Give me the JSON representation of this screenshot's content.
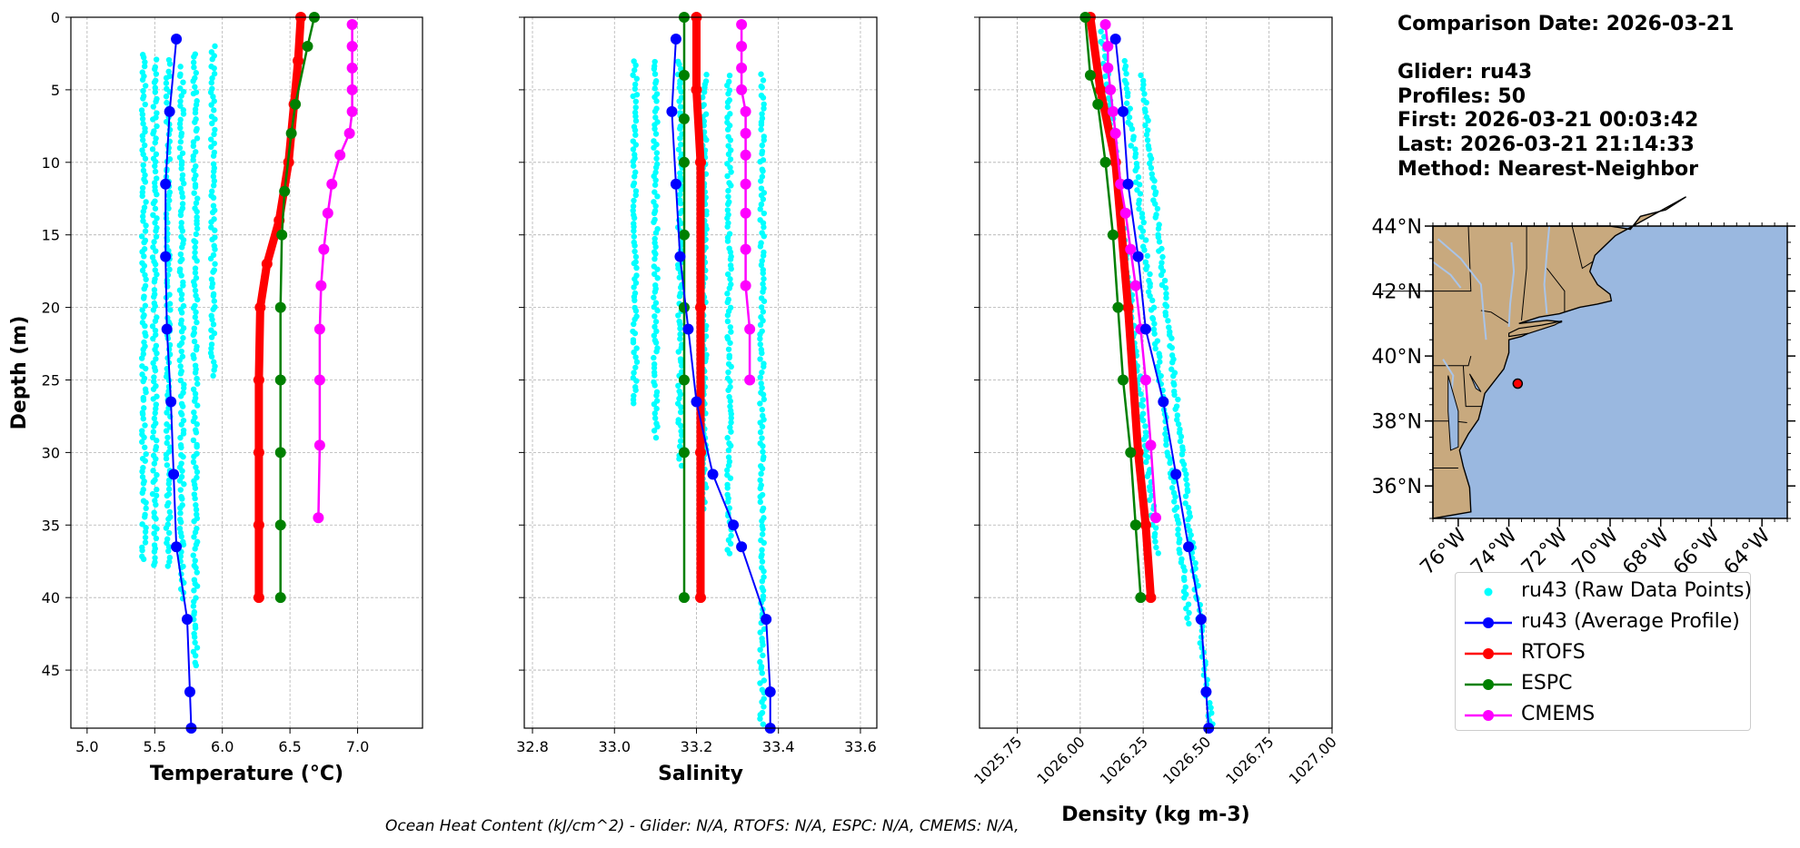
{
  "info": {
    "date_line": "Comparison Date: 2026-03-21",
    "glider_line": "Glider: ru43",
    "profiles_line": "Profiles: 50",
    "first_line": "First: 2026-03-21 00:03:42",
    "last_line": "Last: 2026-03-21 21:14:33",
    "method_line": "Method: Nearest-Neighbor"
  },
  "footnote": "Ocean Heat Content (kJ/cm^2) - Glider: N/A,  RTOFS: N/A,  ESPC: N/A,  CMEMS: N/A,",
  "colors": {
    "raw": "#00ffff",
    "glider": "#0000ff",
    "rtofs": "#ff0000",
    "espc": "#008000",
    "cmems": "#ff00ff",
    "land": "#c8a97e",
    "ocean": "#9ab8e0",
    "marker": "#ff0000"
  },
  "legend": [
    {
      "label": "ru43 (Raw Data Points)",
      "series": "raw"
    },
    {
      "label": "ru43 (Average Profile)",
      "series": "glider"
    },
    {
      "label": "RTOFS",
      "series": "rtofs"
    },
    {
      "label": "ESPC",
      "series": "espc"
    },
    {
      "label": "CMEMS",
      "series": "cmems"
    }
  ],
  "chart_data": [
    {
      "type": "line",
      "xlabel": "Temperature (°C)",
      "ylabel": "Depth (m)",
      "xlim": [
        4.88,
        7.48
      ],
      "ylim": [
        49,
        0
      ],
      "xticks": [
        "5.0",
        "5.5",
        "6.0",
        "6.5",
        "7.0"
      ],
      "yticks": [
        "0",
        "5",
        "10",
        "15",
        "20",
        "25",
        "30",
        "35",
        "40",
        "45"
      ],
      "grid": true,
      "raw_columns": [
        {
          "x": 5.42,
          "depth_range": [
            2.5,
            37.5
          ]
        },
        {
          "x": 5.5,
          "depth_range": [
            3,
            38
          ]
        },
        {
          "x": 5.6,
          "depth_range": [
            3,
            38
          ]
        },
        {
          "x": 5.7,
          "depth_range": [
            3.5,
            40
          ]
        },
        {
          "x": 5.8,
          "depth_range": [
            2.5,
            45
          ]
        },
        {
          "x": 5.93,
          "depth_range": [
            2,
            25
          ]
        }
      ],
      "series": [
        {
          "name": "ru43 (Average Profile)",
          "key": "glider",
          "x": [
            5.66,
            5.61,
            5.58,
            5.58,
            5.59,
            5.62,
            5.64,
            5.66,
            5.74,
            5.76,
            5.77
          ],
          "depth": [
            1.5,
            6.5,
            11.5,
            16.5,
            21.5,
            26.5,
            31.5,
            36.5,
            41.5,
            46.5,
            49
          ]
        },
        {
          "name": "RTOFS",
          "key": "rtofs",
          "x": [
            6.58,
            6.56,
            6.53,
            6.49,
            6.42,
            6.33,
            6.28,
            6.27,
            6.27,
            6.27,
            6.27
          ],
          "depth": [
            0,
            3,
            6,
            10,
            14,
            17,
            20,
            25,
            30,
            35,
            40
          ]
        },
        {
          "name": "ESPC",
          "key": "espc",
          "x": [
            6.68,
            6.63,
            6.54,
            6.51,
            6.46,
            6.44,
            6.43,
            6.43,
            6.43,
            6.43,
            6.43
          ],
          "depth": [
            0,
            2,
            6,
            8,
            12,
            15,
            20,
            25,
            30,
            35,
            40
          ]
        },
        {
          "name": "CMEMS",
          "key": "cmems",
          "x": [
            6.96,
            6.96,
            6.96,
            6.96,
            6.96,
            6.94,
            6.87,
            6.81,
            6.78,
            6.75,
            6.73,
            6.72,
            6.72,
            6.72
          ],
          "depth": [
            0.5,
            2,
            3.5,
            5,
            6.5,
            8,
            9.5,
            11.5,
            13.5,
            16,
            18.5,
            21.5,
            25,
            29.5
          ]
        }
      ],
      "cmems_end": {
        "x": 6.71,
        "depth": 34.5
      }
    },
    {
      "type": "line",
      "xlabel": "Salinity",
      "xlim": [
        32.78,
        33.64
      ],
      "ylim": [
        49,
        0
      ],
      "xticks": [
        "32.8",
        "33.0",
        "33.2",
        "33.4",
        "33.6"
      ],
      "grid": true,
      "raw_columns": [
        {
          "x": 33.05,
          "depth_range": [
            3,
            27
          ]
        },
        {
          "x": 33.1,
          "depth_range": [
            3,
            29
          ]
        },
        {
          "x": 33.16,
          "depth_range": [
            3,
            31
          ]
        },
        {
          "x": 33.22,
          "depth_range": [
            4,
            34
          ]
        },
        {
          "x": 33.28,
          "depth_range": [
            4,
            37
          ]
        },
        {
          "x": 33.36,
          "depth_range": [
            4,
            49
          ]
        }
      ],
      "series": [
        {
          "name": "ru43 (Average Profile)",
          "key": "glider",
          "x": [
            33.15,
            33.14,
            33.15,
            33.16,
            33.18,
            33.2,
            33.24,
            33.29,
            33.31,
            33.37,
            33.38,
            33.38
          ],
          "depth": [
            1.5,
            6.5,
            11.5,
            16.5,
            21.5,
            26.5,
            31.5,
            35,
            36.5,
            41.5,
            46.5,
            49
          ]
        },
        {
          "name": "RTOFS",
          "key": "rtofs",
          "x": [
            33.2,
            33.2,
            33.21,
            33.21,
            33.21,
            33.21
          ],
          "depth": [
            0,
            5,
            10,
            20,
            30,
            40
          ]
        },
        {
          "name": "ESPC",
          "key": "espc",
          "x": [
            33.17,
            33.17,
            33.17,
            33.17,
            33.17,
            33.17,
            33.17,
            33.17,
            33.17
          ],
          "depth": [
            0,
            4,
            7,
            10,
            15,
            20,
            25,
            30,
            40
          ]
        },
        {
          "name": "CMEMS",
          "key": "cmems",
          "x": [
            33.31,
            33.31,
            33.31,
            33.31,
            33.32,
            33.32,
            33.32,
            33.32,
            33.32,
            33.32,
            33.32,
            33.33,
            33.33
          ],
          "depth": [
            0.5,
            2,
            3.5,
            5,
            6.5,
            8,
            9.5,
            11.5,
            13.5,
            16,
            18.5,
            21.5,
            25
          ]
        }
      ]
    },
    {
      "type": "line",
      "xlabel": "Density (kg m-3)",
      "xlim": [
        1025.6,
        1027.0
      ],
      "ylim": [
        49,
        0
      ],
      "xticks": [
        "1025.75",
        "1026.00",
        "1026.25",
        "1026.50",
        "1026.75",
        "1027.00"
      ],
      "grid": true,
      "raw_columns": [
        {
          "x_top": 1026.08,
          "x_bottom": 1026.38,
          "depth_range": [
            1,
            37
          ]
        },
        {
          "x_top": 1026.15,
          "x_bottom": 1026.48,
          "depth_range": [
            3,
            42
          ]
        },
        {
          "x_top": 1026.22,
          "x_bottom": 1026.52,
          "depth_range": [
            4,
            49
          ]
        }
      ],
      "series": [
        {
          "name": "ru43 (Average Profile)",
          "key": "glider",
          "x": [
            1026.14,
            1026.17,
            1026.19,
            1026.23,
            1026.26,
            1026.33,
            1026.38,
            1026.43,
            1026.48,
            1026.5,
            1026.51
          ],
          "depth": [
            1.5,
            6.5,
            11.5,
            16.5,
            21.5,
            26.5,
            31.5,
            36.5,
            41.5,
            46.5,
            49
          ]
        },
        {
          "name": "RTOFS",
          "key": "rtofs",
          "x": [
            1026.04,
            1026.08,
            1026.14,
            1026.19,
            1026.23,
            1026.26,
            1026.28
          ],
          "depth": [
            0,
            5,
            10,
            20,
            30,
            35,
            40
          ]
        },
        {
          "name": "ESPC",
          "key": "espc",
          "x": [
            1026.02,
            1026.04,
            1026.07,
            1026.1,
            1026.13,
            1026.15,
            1026.17,
            1026.2,
            1026.22,
            1026.24
          ],
          "depth": [
            0,
            4,
            6,
            10,
            15,
            20,
            25,
            30,
            35,
            40
          ]
        },
        {
          "name": "CMEMS",
          "key": "cmems",
          "x": [
            1026.1,
            1026.11,
            1026.11,
            1026.12,
            1026.13,
            1026.14,
            1026.16,
            1026.18,
            1026.2,
            1026.22,
            1026.24,
            1026.26,
            1026.28,
            1026.3
          ],
          "depth": [
            0.5,
            2,
            3.5,
            5,
            6.5,
            8,
            11.5,
            13.5,
            16,
            18.5,
            21.5,
            25,
            29.5,
            34.5
          ]
        }
      ]
    },
    {
      "type": "map",
      "lat_ticks": [
        "44°N",
        "42°N",
        "40°N",
        "38°N",
        "36°N"
      ],
      "lon_ticks": [
        "76°W",
        "74°W",
        "72°W",
        "70°W",
        "68°W",
        "66°W",
        "64°W"
      ],
      "extent": {
        "lon": [
          -77,
          -63
        ],
        "lat": [
          35,
          44
        ]
      },
      "glider_position": {
        "lon": -73.65,
        "lat": 39.15
      }
    }
  ]
}
